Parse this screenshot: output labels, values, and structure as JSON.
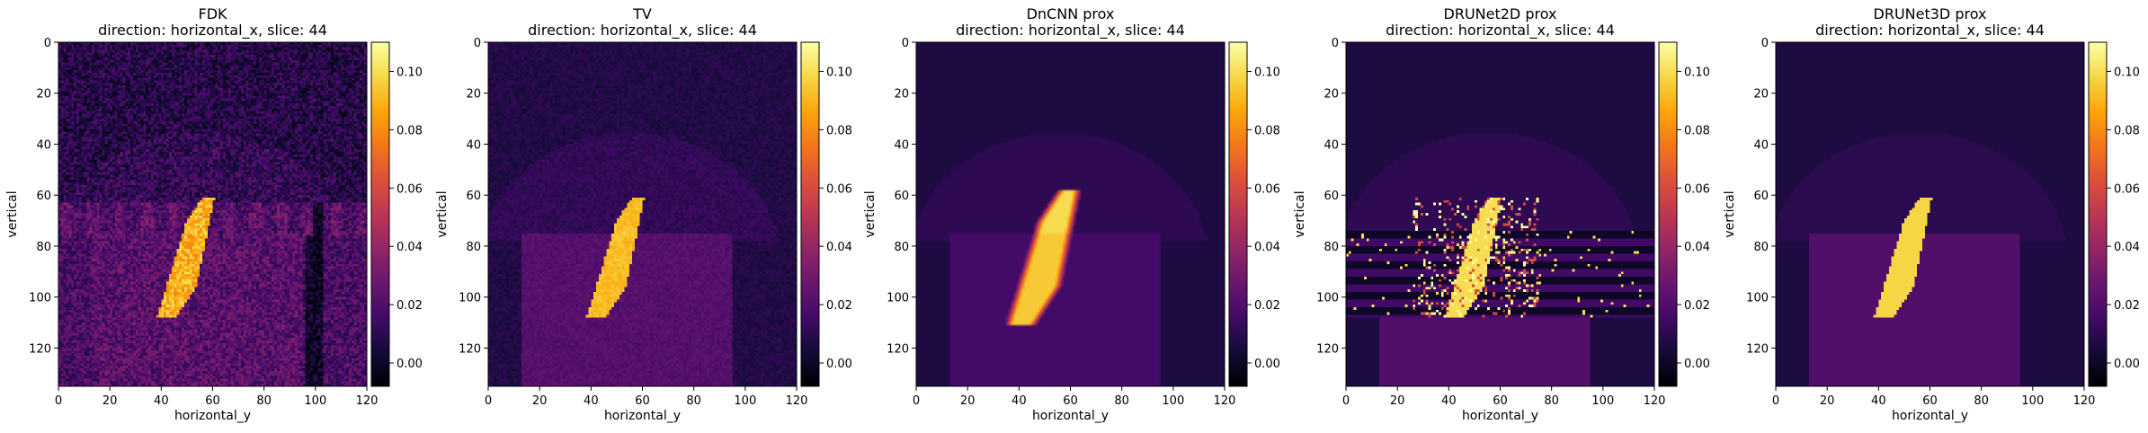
{
  "chart_data": [
    {
      "type": "heatmap",
      "title": "FDK",
      "subtitle": "direction: horizontal_x, slice: 44",
      "xlabel": "horizontal_y",
      "ylabel": "vertical",
      "xlim": [
        0,
        120
      ],
      "ylim": [
        135,
        0
      ],
      "x_ticks": [
        0,
        20,
        40,
        60,
        80,
        100,
        120
      ],
      "y_ticks": [
        0,
        20,
        40,
        60,
        80,
        100,
        120
      ],
      "colorbar": {
        "colormap": "inferno",
        "range": [
          -0.008,
          0.11
        ],
        "ticks": [
          "0.00",
          "0.02",
          "0.04",
          "0.06",
          "0.08",
          "0.10"
        ]
      },
      "image": {
        "background": 0.008,
        "upper_dome": 0.012,
        "band_rows": [
          63,
          135
        ],
        "band_value": 0.018,
        "inner_rect": {
          "cols": [
            13,
            95
          ],
          "rows": [
            75,
            135
          ],
          "value": 0.022
        },
        "object_value": 0.09,
        "noise": 0.012
      }
    },
    {
      "type": "heatmap",
      "title": "TV",
      "subtitle": "direction: horizontal_x, slice: 44",
      "xlabel": "horizontal_y",
      "ylabel": "vertical",
      "xlim": [
        0,
        120
      ],
      "ylim": [
        135,
        0
      ],
      "x_ticks": [
        0,
        20,
        40,
        60,
        80,
        100,
        120
      ],
      "y_ticks": [
        0,
        20,
        40,
        60,
        80,
        100,
        120
      ],
      "colorbar": {
        "colormap": "inferno",
        "range": [
          -0.008,
          0.11
        ],
        "ticks": [
          "0.00",
          "0.02",
          "0.04",
          "0.06",
          "0.08",
          "0.10"
        ]
      },
      "image": {
        "background": 0.007,
        "upper_dome": 0.011,
        "inner_rect": {
          "cols": [
            13,
            95
          ],
          "rows": [
            75,
            135
          ],
          "value": 0.021
        },
        "object_value": 0.092,
        "noise": 0.004
      }
    },
    {
      "type": "heatmap",
      "title": "DnCNN prox",
      "subtitle": "direction: horizontal_x, slice: 44",
      "xlabel": "horizontal_y",
      "ylabel": "vertical",
      "xlim": [
        0,
        120
      ],
      "ylim": [
        135,
        0
      ],
      "x_ticks": [
        0,
        20,
        40,
        60,
        80,
        100,
        120
      ],
      "y_ticks": [
        0,
        20,
        40,
        60,
        80,
        100,
        120
      ],
      "colorbar": {
        "colormap": "inferno",
        "range": [
          -0.008,
          0.11
        ],
        "ticks": [
          "0.00",
          "0.02",
          "0.04",
          "0.06",
          "0.08",
          "0.10"
        ]
      },
      "image": {
        "background": 0.006,
        "upper_dome": 0.01,
        "inner_rect": {
          "cols": [
            13,
            95
          ],
          "rows": [
            75,
            135
          ],
          "value": 0.016
        },
        "object_value": 0.095,
        "noise": 0.0,
        "blurred": true
      }
    },
    {
      "type": "heatmap",
      "title": "DRUNet2D prox",
      "subtitle": "direction: horizontal_x, slice: 44",
      "xlabel": "horizontal_y",
      "ylabel": "vertical",
      "xlim": [
        0,
        120
      ],
      "ylim": [
        135,
        0
      ],
      "x_ticks": [
        0,
        20,
        40,
        60,
        80,
        100,
        120
      ],
      "y_ticks": [
        0,
        20,
        40,
        60,
        80,
        100,
        120
      ],
      "colorbar": {
        "colormap": "inferno",
        "range": [
          -0.008,
          0.11
        ],
        "ticks": [
          "0.00",
          "0.02",
          "0.04",
          "0.06",
          "0.08",
          "0.10"
        ]
      },
      "image": {
        "background": 0.006,
        "upper_dome": 0.01,
        "inner_rect": {
          "cols": [
            13,
            95
          ],
          "rows": [
            108,
            135
          ],
          "value": 0.02
        },
        "streak_rows": [
          74,
          108
        ],
        "object_value": 0.1,
        "speckle": true
      }
    },
    {
      "type": "heatmap",
      "title": "DRUNet3D prox",
      "subtitle": "direction: horizontal_x, slice: 44",
      "xlabel": "horizontal_y",
      "ylabel": "vertical",
      "xlim": [
        0,
        120
      ],
      "ylim": [
        135,
        0
      ],
      "x_ticks": [
        0,
        20,
        40,
        60,
        80,
        100,
        120
      ],
      "y_ticks": [
        0,
        20,
        40,
        60,
        80,
        100,
        120
      ],
      "colorbar": {
        "colormap": "inferno",
        "range": [
          -0.008,
          0.11
        ],
        "ticks": [
          "0.00",
          "0.02",
          "0.04",
          "0.06",
          "0.08",
          "0.10"
        ]
      },
      "image": {
        "background": 0.006,
        "upper_dome": 0.009,
        "inner_rect": {
          "cols": [
            13,
            95
          ],
          "rows": [
            75,
            135
          ],
          "value": 0.02
        },
        "object_value": 0.098,
        "noise": 0.0
      }
    }
  ]
}
